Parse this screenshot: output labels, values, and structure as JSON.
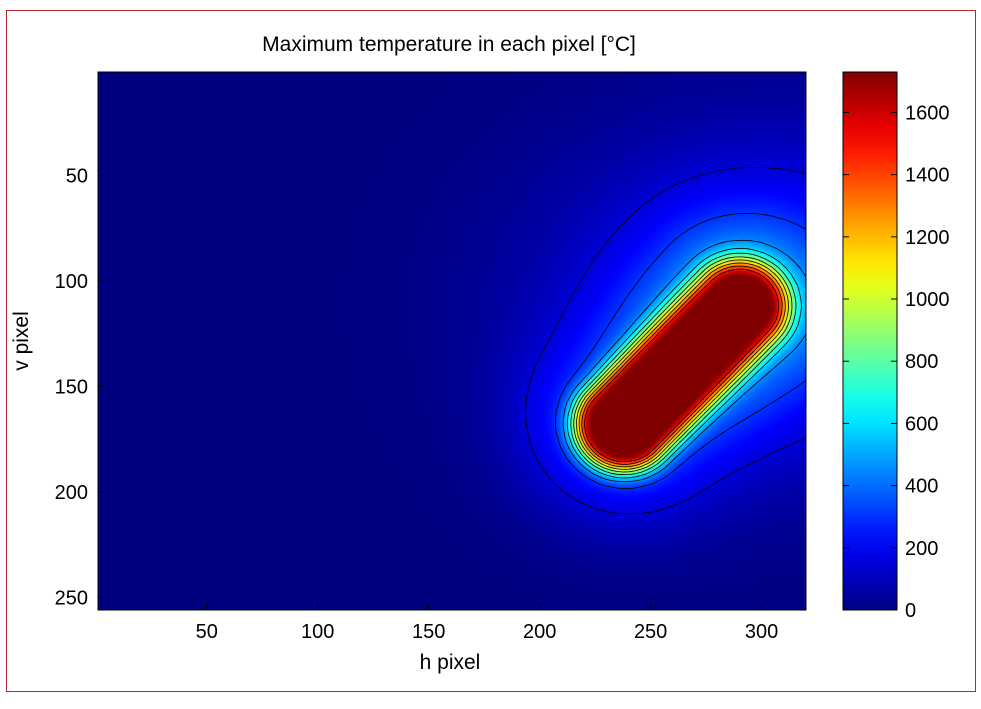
{
  "chart_data": {
    "type": "heatmap",
    "title": "Maximum temperature in each pixel [°C]",
    "xlabel": "h pixel",
    "ylabel": "v pixel",
    "xlim": [
      1,
      320
    ],
    "ylim": [
      256,
      1
    ],
    "y_reversed": true,
    "x_ticks": [
      50,
      100,
      150,
      200,
      250,
      300
    ],
    "y_ticks": [
      50,
      100,
      150,
      200,
      250
    ],
    "colorbar": {
      "colormap": "jet",
      "range": [
        0,
        1730
      ],
      "ticks": [
        0,
        200,
        400,
        600,
        800,
        1000,
        1200,
        1400,
        1600
      ]
    },
    "contour_levels": [
      150,
      300,
      450,
      600,
      750,
      900,
      1050,
      1200,
      1350,
      1500
    ],
    "features": {
      "background_value": 0,
      "plume_value": 260,
      "hot_zone": {
        "start_h": 238,
        "start_v": 168,
        "end_h": 290,
        "end_v": 112,
        "peak_value": 1730
      }
    }
  }
}
